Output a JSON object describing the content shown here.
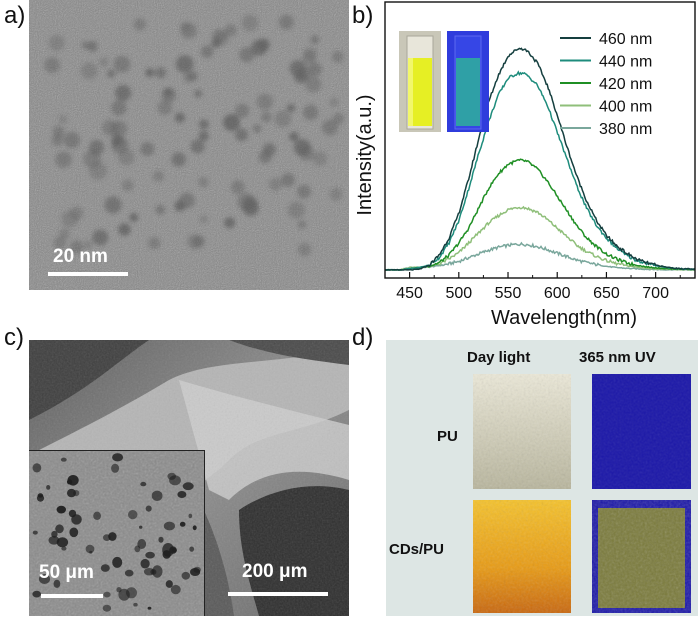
{
  "figure": {
    "panel_a": {
      "label": "a)",
      "scale_bar": "20 nm"
    },
    "panel_b": {
      "label": "b)"
    },
    "panel_c": {
      "label": "c)",
      "inset_scale_bar": "50 μm",
      "main_scale_bar": "200 μm"
    },
    "panel_d": {
      "label": "d)",
      "col_headers": [
        "Day light",
        "365 nm UV"
      ],
      "row_labels": [
        "PU",
        "CDs/PU"
      ]
    }
  },
  "colors": {
    "s460": "#153f3f",
    "s440": "#1e8c7c",
    "s420": "#1f8f24",
    "s400": "#8fbf7a",
    "s380": "#7aa79c"
  },
  "chart_data": {
    "type": "line",
    "title": "",
    "xlabel": "Wavelength(nm)",
    "ylabel": "Intensity(a.u.)",
    "xlim": [
      425,
      740
    ],
    "ylim": [
      0,
      1.0
    ],
    "xticks": [
      450,
      500,
      550,
      600,
      650,
      700
    ],
    "yticks": [],
    "legend_position": "top-right",
    "x": [
      425,
      440,
      450,
      460,
      470,
      480,
      490,
      500,
      510,
      520,
      530,
      540,
      550,
      560,
      565,
      570,
      580,
      590,
      600,
      610,
      620,
      630,
      640,
      650,
      660,
      670,
      680,
      690,
      700,
      710,
      720,
      740
    ],
    "series": [
      {
        "name": "460 nm",
        "color_key": "s460",
        "values": [
          0.0,
          0.0,
          0.0,
          0.003,
          0.02,
          0.06,
          0.13,
          0.23,
          0.37,
          0.53,
          0.68,
          0.79,
          0.87,
          0.9,
          0.9,
          0.89,
          0.84,
          0.75,
          0.63,
          0.5,
          0.38,
          0.28,
          0.2,
          0.14,
          0.1,
          0.07,
          0.045,
          0.03,
          0.02,
          0.012,
          0.007,
          0.003
        ]
      },
      {
        "name": "440 nm",
        "color_key": "s440",
        "values": [
          0.0,
          0.0,
          0.005,
          0.01,
          0.02,
          0.05,
          0.11,
          0.2,
          0.33,
          0.47,
          0.6,
          0.71,
          0.78,
          0.8,
          0.8,
          0.79,
          0.75,
          0.67,
          0.56,
          0.45,
          0.34,
          0.25,
          0.18,
          0.13,
          0.09,
          0.06,
          0.04,
          0.027,
          0.018,
          0.011,
          0.006,
          0.003
        ]
      },
      {
        "name": "420 nm",
        "color_key": "s420",
        "values": [
          0.0,
          0.0,
          0.005,
          0.01,
          0.015,
          0.03,
          0.06,
          0.11,
          0.17,
          0.25,
          0.33,
          0.39,
          0.43,
          0.445,
          0.445,
          0.44,
          0.41,
          0.36,
          0.3,
          0.24,
          0.18,
          0.13,
          0.095,
          0.065,
          0.045,
          0.03,
          0.02,
          0.013,
          0.009,
          0.006,
          0.004,
          0.002
        ]
      },
      {
        "name": "400 nm",
        "color_key": "s400",
        "values": [
          0.0,
          0.0,
          0.01,
          0.012,
          0.014,
          0.025,
          0.045,
          0.07,
          0.11,
          0.15,
          0.19,
          0.22,
          0.245,
          0.255,
          0.255,
          0.25,
          0.235,
          0.205,
          0.17,
          0.135,
          0.1,
          0.075,
          0.055,
          0.038,
          0.026,
          0.018,
          0.012,
          0.008,
          0.005,
          0.003,
          0.002,
          0.001
        ]
      },
      {
        "name": "380 nm",
        "color_key": "s380",
        "values": [
          0.0,
          0.0,
          0.01,
          0.01,
          0.012,
          0.018,
          0.025,
          0.035,
          0.05,
          0.065,
          0.08,
          0.092,
          0.1,
          0.105,
          0.105,
          0.103,
          0.095,
          0.083,
          0.068,
          0.054,
          0.04,
          0.03,
          0.022,
          0.015,
          0.01,
          0.007,
          0.005,
          0.003,
          0.002,
          0.001,
          0.001,
          0.0
        ]
      }
    ]
  }
}
